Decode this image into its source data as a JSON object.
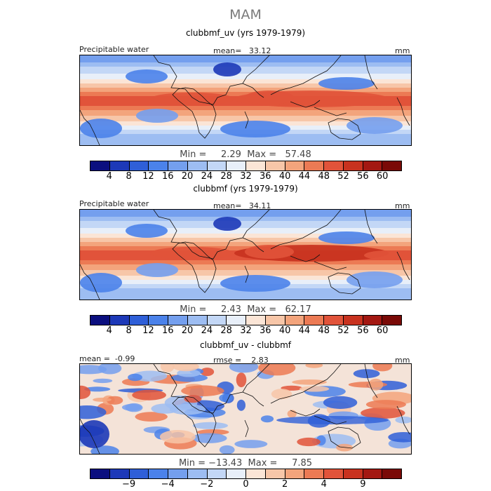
{
  "figure": {
    "title": "MAM"
  },
  "panels": [
    {
      "subtitle": "clubbmf_uv (yrs 1979-1979)",
      "left_label": "Precipitable water",
      "center_label": "mean=   33.12",
      "unit": "mm",
      "minmax": "Min =     2.29  Max =   57.48",
      "field": "precipitable water"
    },
    {
      "subtitle": "clubbmf (yrs 1979-1979)",
      "left_label": "Precipitable water",
      "center_label": "mean=   34.11",
      "unit": "mm",
      "minmax": "Min =     2.43  Max =   62.17",
      "field": "precipitable water"
    },
    {
      "subtitle": "clubbmf_uv - clubbmf",
      "left_label": "mean =  -0.99",
      "center_label": "rmse =    2.83",
      "unit": "mm",
      "minmax": "Min = −13.43  Max =     7.85",
      "field": "difference"
    }
  ],
  "colorbars": {
    "abs": {
      "colors": [
        "#0b0f7f",
        "#1d39b8",
        "#2f5fd8",
        "#4b82ea",
        "#749fee",
        "#9dbdf2",
        "#c3d7f6",
        "#e8eff9",
        "#fbe5d6",
        "#f7c6a8",
        "#f3a47c",
        "#ec7a54",
        "#e1533a",
        "#c8321f",
        "#a31812",
        "#7a0a07"
      ],
      "ticks": [
        "4",
        "8",
        "12",
        "16",
        "20",
        "24",
        "28",
        "32",
        "36",
        "40",
        "44",
        "48",
        "52",
        "56",
        "60"
      ]
    },
    "diff": {
      "colors": [
        "#0b0f7f",
        "#1d39b8",
        "#2f5fd8",
        "#4b82ea",
        "#749fee",
        "#9dbdf2",
        "#c3d7f6",
        "#e8eff9",
        "#fbe5d6",
        "#f7c6a8",
        "#f3a47c",
        "#ec7a54",
        "#e1533a",
        "#c8321f",
        "#a31812",
        "#7a0a07"
      ],
      "ticks": [
        "−9",
        "−4",
        "−2",
        "0",
        "2",
        "4",
        "9"
      ],
      "tick_boundaries": [
        2,
        4,
        6,
        8,
        10,
        12,
        14
      ]
    }
  }
}
